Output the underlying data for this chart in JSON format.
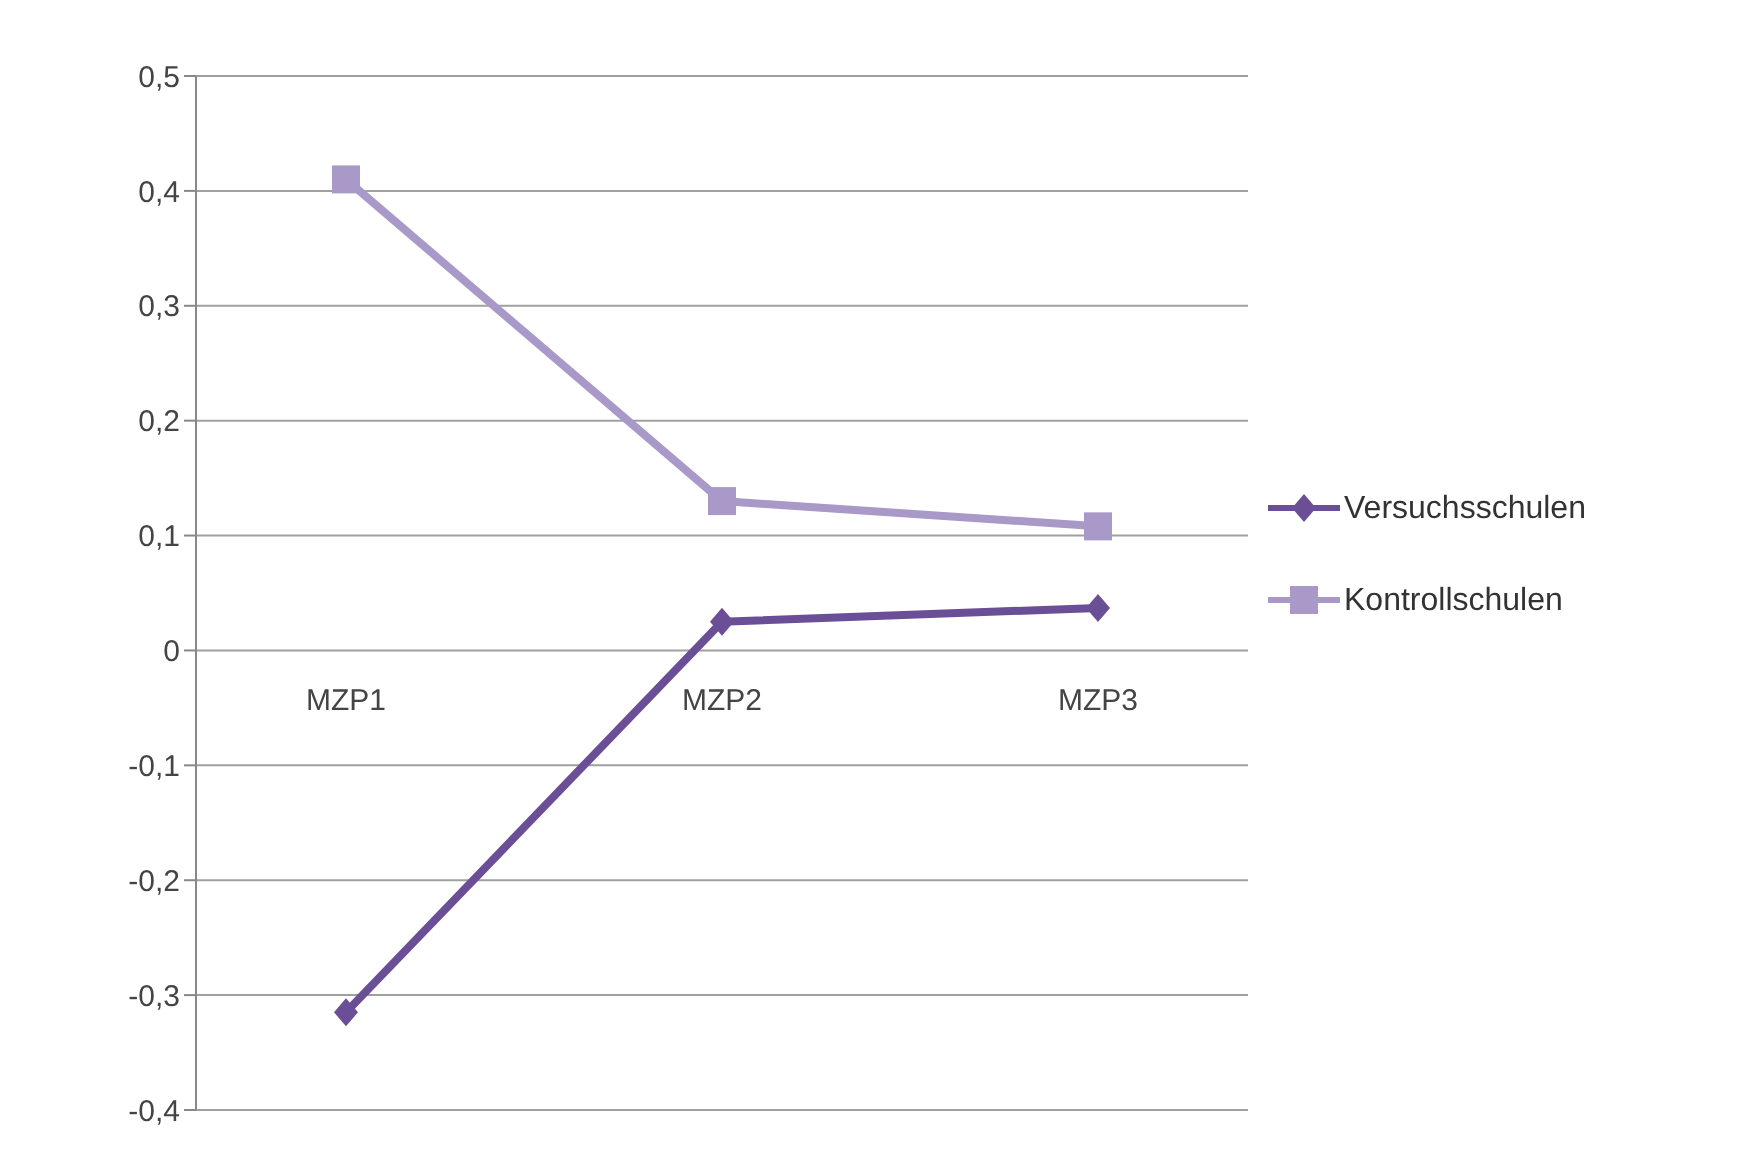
{
  "chart_data": {
    "type": "line",
    "categories": [
      "MZP1",
      "MZP2",
      "MZP3"
    ],
    "series": [
      {
        "name": "Versuchsschulen",
        "color": "#6b4f96",
        "marker": "diamond",
        "values": [
          -0.315,
          0.025,
          0.037
        ]
      },
      {
        "name": "Kontrollschulen",
        "color": "#a899c8",
        "marker": "square",
        "values": [
          0.41,
          0.13,
          0.108
        ]
      }
    ],
    "ylim": [
      -0.4,
      0.5
    ],
    "yticks": [
      {
        "value": 0.5,
        "label": "0,5"
      },
      {
        "value": 0.4,
        "label": "0,4"
      },
      {
        "value": 0.3,
        "label": "0,3"
      },
      {
        "value": 0.2,
        "label": "0,2"
      },
      {
        "value": 0.1,
        "label": "0,1"
      },
      0,
      {
        "value": -0.1,
        "label": "-0,1"
      },
      {
        "value": -0.2,
        "label": "-0,2"
      },
      {
        "value": -0.3,
        "label": "-0,3"
      },
      {
        "value": -0.4,
        "label": "-0,4"
      }
    ],
    "grid": "y",
    "legend": "right"
  }
}
